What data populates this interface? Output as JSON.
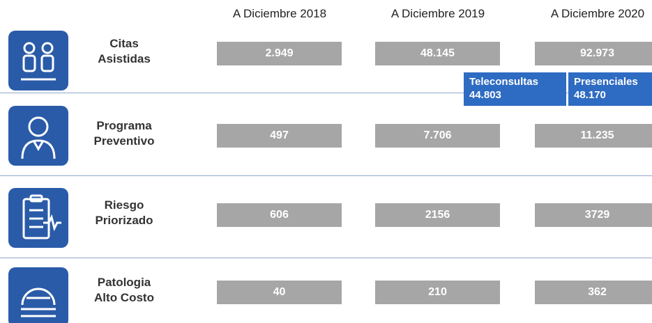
{
  "columns": [
    "A Diciembre 2018",
    "A Diciembre 2019",
    "A Diciembre 2020"
  ],
  "rows": [
    {
      "label": [
        "Citas",
        "Asistidas"
      ],
      "values": [
        "2.949",
        "48.145",
        "92.973"
      ]
    },
    {
      "label": [
        "Programa",
        "Preventivo"
      ],
      "values": [
        "497",
        "7.706",
        "11.235"
      ]
    },
    {
      "label": [
        "Riesgo",
        "Priorizado"
      ],
      "values": [
        "606",
        "2156",
        "3729"
      ]
    },
    {
      "label": [
        "Patologia",
        "Alto Costo"
      ],
      "values": [
        "40",
        "210",
        "362"
      ]
    }
  ],
  "breakdown": [
    {
      "label": "Teleconsultas",
      "value": "44.803"
    },
    {
      "label": "Presenciales",
      "value": "48.170"
    }
  ]
}
